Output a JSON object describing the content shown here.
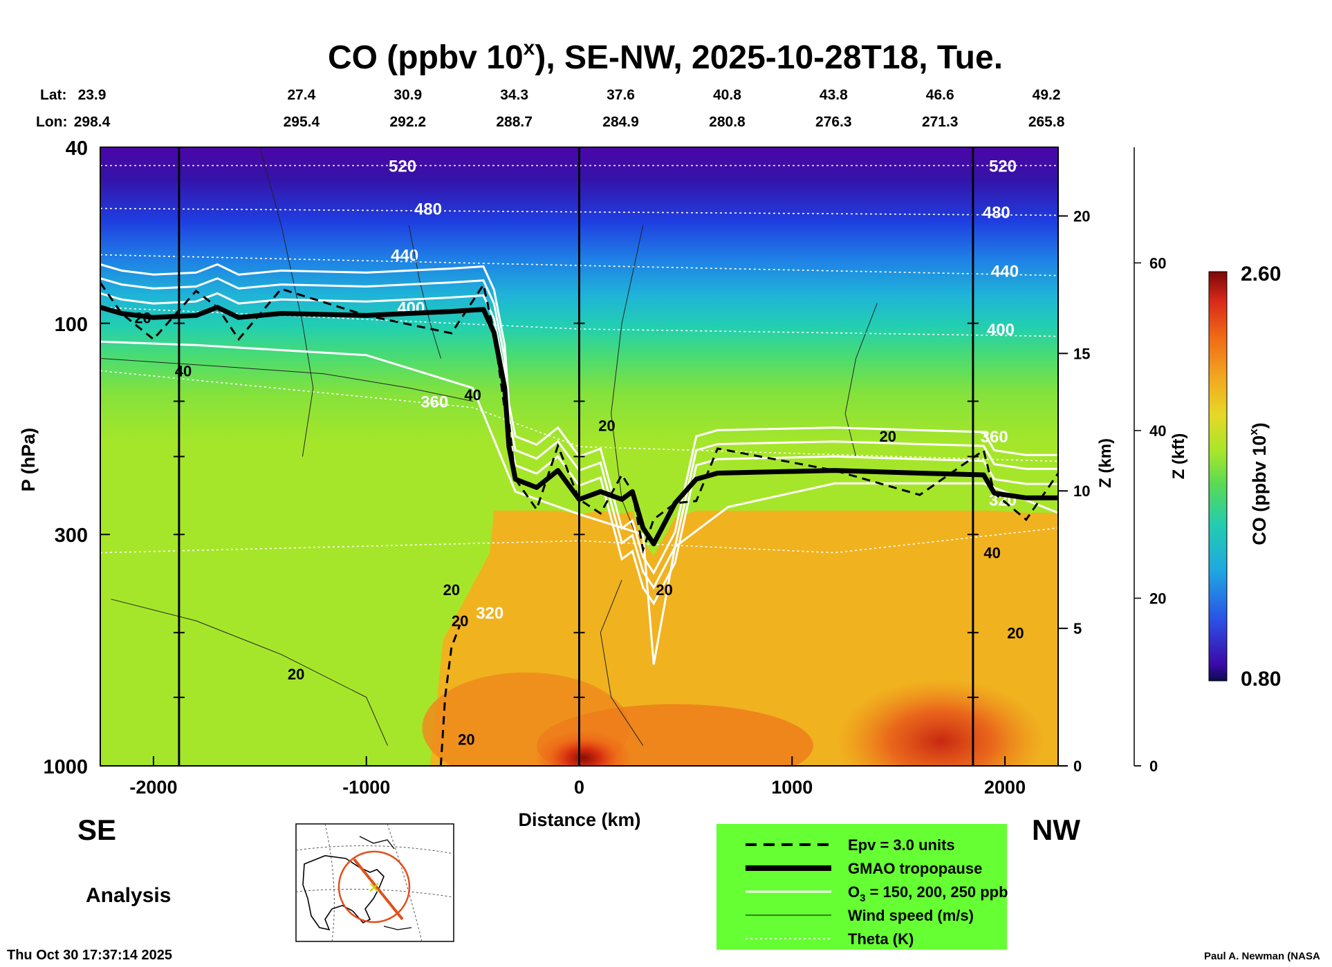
{
  "title_main": "CO (ppbv 10",
  "title_sup": "x",
  "title_rest": "), SE-NW, 2025-10-28T18, Tue.",
  "lat_label": "Lat:",
  "lon_label": "Lon:",
  "direction_left": "SE",
  "direction_right": "NW",
  "analysis_label": "Analysis",
  "timestamp": "Thu Oct 30 17:37:14 2025",
  "credit": "Paul A. Newman (NASA",
  "colors": {
    "legend_bg": "#66ff33",
    "plot_bg": "#a8e82a"
  },
  "legend": [
    {
      "label": "Epv = 3.0 units",
      "style": "dashed-black"
    },
    {
      "label": "GMAO tropopause",
      "style": "thick-black"
    },
    {
      "label": "O",
      "sub": "3",
      "label_rest": " = 150, 200, 250 ppb",
      "style": "white"
    },
    {
      "label": "Wind speed (m/s)",
      "style": "thin-black"
    },
    {
      "label": "Theta (K)",
      "style": "dotted-white"
    }
  ],
  "chart_data": {
    "type": "cross-section contour",
    "title": "CO (ppbv 10^x), SE-NW, 2025-10-28T18, Tue.",
    "xlabel": "Distance (km)",
    "ylabel": "P (hPa)",
    "y2label": "Z (km)",
    "y3label": "Z (kft)",
    "colorbar_label": "CO (ppbv 10",
    "colorbar_label_sup": "x",
    "colorbar_label_end": ")",
    "colorbar_max": "2.60",
    "colorbar_min": "0.80",
    "xlim": [
      -2250,
      2250
    ],
    "ylim_hpa": [
      1000,
      40
    ],
    "x_ticks": [
      {
        "v": -2000,
        "label": "-2000"
      },
      {
        "v": -1000,
        "label": "-1000"
      },
      {
        "v": 0,
        "label": "0"
      },
      {
        "v": 1000,
        "label": "1000"
      },
      {
        "v": 2000,
        "label": "2000"
      }
    ],
    "p_ticks": [
      {
        "v": 40,
        "label": "40"
      },
      {
        "v": 100,
        "label": "100"
      },
      {
        "v": 300,
        "label": "300"
      },
      {
        "v": 1000,
        "label": "1000"
      }
    ],
    "z_km_ticks": [
      {
        "v": 0,
        "label": "0"
      },
      {
        "v": 5,
        "label": "5"
      },
      {
        "v": 10,
        "label": "10"
      },
      {
        "v": 15,
        "label": "15"
      },
      {
        "v": 20,
        "label": "20"
      }
    ],
    "z_kft_ticks": [
      {
        "v": 0,
        "label": "0"
      },
      {
        "v": 20,
        "label": "20"
      },
      {
        "v": 40,
        "label": "40"
      },
      {
        "v": 60,
        "label": "60"
      }
    ],
    "lats": [
      "23.9",
      "27.4",
      "30.9",
      "34.3",
      "37.6",
      "40.8",
      "43.8",
      "46.6",
      "49.2"
    ],
    "lons": [
      "298.4",
      "295.4",
      "292.2",
      "288.7",
      "284.9",
      "280.8",
      "276.3",
      "271.3",
      "265.8"
    ],
    "lat_lon_km": [
      -2250,
      -1750,
      -1250,
      -750,
      -250,
      250,
      750,
      1250,
      1750
    ],
    "vertical_markers_km": [
      -1880,
      0,
      1850
    ],
    "tropopause": [
      [
        -2250,
        92
      ],
      [
        -2150,
        95
      ],
      [
        -2000,
        97
      ],
      [
        -1800,
        96
      ],
      [
        -1700,
        92
      ],
      [
        -1600,
        97
      ],
      [
        -1400,
        95
      ],
      [
        -1000,
        96
      ],
      [
        -600,
        94
      ],
      [
        -450,
        93
      ],
      [
        -400,
        105
      ],
      [
        -350,
        140
      ],
      [
        -330,
        190
      ],
      [
        -300,
        225
      ],
      [
        -200,
        235
      ],
      [
        -100,
        215
      ],
      [
        0,
        250
      ],
      [
        100,
        240
      ],
      [
        200,
        250
      ],
      [
        250,
        240
      ],
      [
        300,
        290
      ],
      [
        350,
        315
      ],
      [
        450,
        255
      ],
      [
        550,
        225
      ],
      [
        650,
        218
      ],
      [
        1200,
        215
      ],
      [
        1600,
        218
      ],
      [
        1900,
        220
      ],
      [
        1950,
        242
      ],
      [
        2100,
        248
      ],
      [
        2250,
        248
      ]
    ],
    "theta_isolines": [
      {
        "value": 520,
        "points": [
          [
            -2250,
            44
          ],
          [
            0,
            44
          ],
          [
            2250,
            44
          ]
        ],
        "label_at": [
          [
            -830,
            44
          ],
          [
            1990,
            44
          ]
        ]
      },
      {
        "value": 480,
        "points": [
          [
            -2250,
            55
          ],
          [
            0,
            56
          ],
          [
            2250,
            57
          ]
        ],
        "label_at": [
          [
            -710,
            55
          ],
          [
            1960,
            56
          ]
        ]
      },
      {
        "value": 440,
        "points": [
          [
            -2250,
            70
          ],
          [
            0,
            74
          ],
          [
            2250,
            78
          ]
        ],
        "label_at": [
          [
            -820,
            70
          ],
          [
            2000,
            76
          ]
        ]
      },
      {
        "value": 400,
        "points": [
          [
            -2250,
            92
          ],
          [
            0,
            103
          ],
          [
            2250,
            107
          ]
        ],
        "label_at": [
          [
            -790,
            92
          ],
          [
            1980,
            103
          ]
        ]
      },
      {
        "value": 360,
        "points": [
          [
            -2250,
            128
          ],
          [
            -500,
            155
          ],
          [
            0,
            190
          ],
          [
            1200,
            198
          ],
          [
            2250,
            205
          ]
        ],
        "label_at": [
          [
            -680,
            150
          ],
          [
            1950,
            180
          ]
        ]
      },
      {
        "value": 320,
        "points": [
          [
            -2250,
            330
          ],
          [
            0,
            310
          ],
          [
            1200,
            330
          ],
          [
            2250,
            290
          ]
        ],
        "label_at": [
          [
            -420,
            450
          ],
          [
            1990,
            250
          ]
        ]
      }
    ],
    "wind_labels": [
      {
        "value": "20",
        "x": -2050,
        "p": 97
      },
      {
        "value": "40",
        "x": -1860,
        "p": 128
      },
      {
        "value": "40",
        "x": -500,
        "p": 145
      },
      {
        "value": "20",
        "x": 130,
        "p": 170
      },
      {
        "value": "20",
        "x": 1450,
        "p": 180
      },
      {
        "value": "20",
        "x": 400,
        "p": 400
      },
      {
        "value": "20",
        "x": -600,
        "p": 400
      },
      {
        "value": "20",
        "x": -560,
        "p": 470
      },
      {
        "value": "20",
        "x": -1330,
        "p": 620
      },
      {
        "value": "20",
        "x": -530,
        "p": 870
      },
      {
        "value": "40",
        "x": 1940,
        "p": 330
      },
      {
        "value": "20",
        "x": 2050,
        "p": 500
      }
    ]
  }
}
